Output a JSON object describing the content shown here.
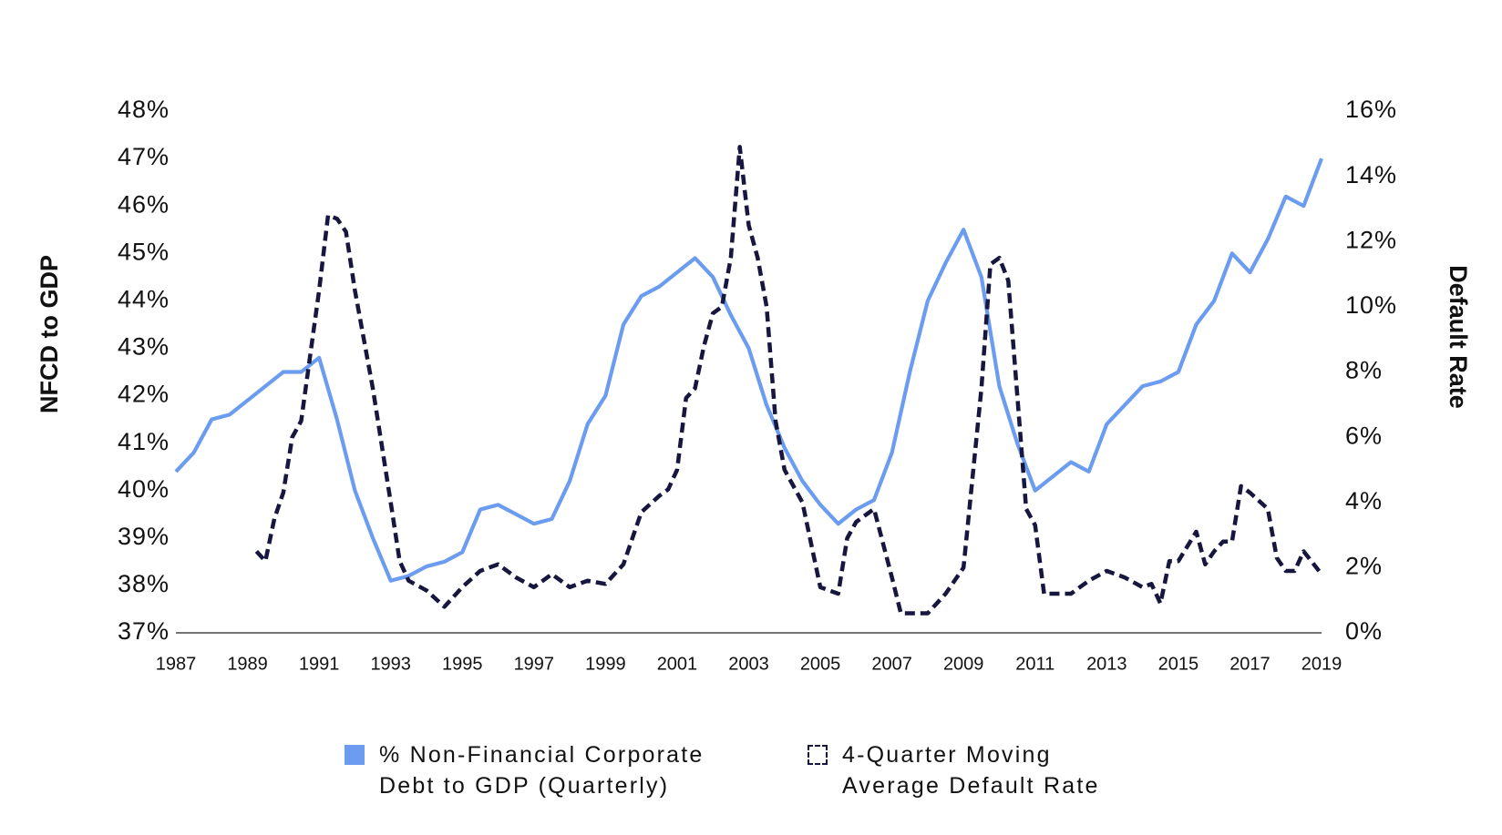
{
  "chart_data": {
    "type": "line",
    "y_label": "NFCD to GDP",
    "y2_label": "Default Rate",
    "xlim": [
      1987,
      2019
    ],
    "xticks": [
      1987,
      1989,
      1991,
      1993,
      1995,
      1997,
      1999,
      2001,
      2003,
      2005,
      2007,
      2009,
      2011,
      2013,
      2015,
      2017,
      2019
    ],
    "ylim": [
      37,
      48
    ],
    "yticks": [
      {
        "value": 37,
        "label": "37%"
      },
      {
        "value": 38,
        "label": "38%"
      },
      {
        "value": 39,
        "label": "39%"
      },
      {
        "value": 40,
        "label": "40%"
      },
      {
        "value": 41,
        "label": "41%"
      },
      {
        "value": 42,
        "label": "42%"
      },
      {
        "value": 43,
        "label": "43%"
      },
      {
        "value": 44,
        "label": "44%"
      },
      {
        "value": 45,
        "label": "45%"
      },
      {
        "value": 46,
        "label": "46%"
      },
      {
        "value": 47,
        "label": "47%"
      },
      {
        "value": 48,
        "label": "48%"
      }
    ],
    "y2lim": [
      0,
      16
    ],
    "y2ticks": [
      {
        "value": 0,
        "label": "0%"
      },
      {
        "value": 2,
        "label": "2%"
      },
      {
        "value": 4,
        "label": "4%"
      },
      {
        "value": 6,
        "label": "6%"
      },
      {
        "value": 8,
        "label": "8%"
      },
      {
        "value": 10,
        "label": "10%"
      },
      {
        "value": 12,
        "label": "12%"
      },
      {
        "value": 14,
        "label": "14%"
      },
      {
        "value": 16,
        "label": "16%"
      }
    ],
    "grid": false,
    "legend": "bottom",
    "series": [
      {
        "name": "% Non-Financial Corporate Debt to GDP (Quarterly)",
        "color": "#6b9cf0",
        "linestyle": "solid",
        "x": [
          1987,
          1987.5,
          1988,
          1988.5,
          1989,
          1989.5,
          1990,
          1990.5,
          1991,
          1991.5,
          1992,
          1992.5,
          1993,
          1993.5,
          1994,
          1994.5,
          1995,
          1995.5,
          1996,
          1996.5,
          1997,
          1997.5,
          1998,
          1998.5,
          1999,
          1999.5,
          2000,
          2000.5,
          2001,
          2001.5,
          2002,
          2002.5,
          2003,
          2003.5,
          2004,
          2004.5,
          2005,
          2005.5,
          2006,
          2006.5,
          2007,
          2007.5,
          2008,
          2008.5,
          2009,
          2009.5,
          2010,
          2010.5,
          2011,
          2011.5,
          2012,
          2012.5,
          2013,
          2013.5,
          2014,
          2014.5,
          2015,
          2015.5,
          2016,
          2016.5,
          2017,
          2017.5,
          2018,
          2018.5,
          2019
        ],
        "values": [
          40.4,
          40.8,
          41.5,
          41.6,
          41.9,
          42.2,
          42.5,
          42.5,
          42.8,
          41.5,
          40.0,
          39.0,
          38.1,
          38.2,
          38.4,
          38.5,
          38.7,
          39.6,
          39.7,
          39.5,
          39.3,
          39.4,
          40.2,
          41.4,
          42.0,
          43.5,
          44.1,
          44.3,
          44.6,
          44.9,
          44.5,
          43.7,
          43.0,
          41.8,
          40.9,
          40.2,
          39.7,
          39.3,
          39.6,
          39.8,
          40.8,
          42.5,
          44.0,
          44.8,
          45.5,
          44.5,
          42.2,
          41.0,
          40.0,
          40.3,
          40.6,
          40.4,
          41.4,
          41.8,
          42.2,
          42.3,
          42.5,
          43.5,
          44.0,
          45.0,
          44.6,
          45.3,
          46.2,
          46.0,
          47.0
        ]
      },
      {
        "name": "4-Quarter Moving Average Default Rate",
        "color": "#16163f",
        "linestyle": "dashed",
        "axis": "y2",
        "x": [
          1989.25,
          1989.5,
          1989.75,
          1990,
          1990.25,
          1990.5,
          1990.75,
          1991,
          1991.25,
          1991.5,
          1991.75,
          1992,
          1992.5,
          1993,
          1993.25,
          1993.5,
          1994,
          1994.5,
          1995,
          1995.5,
          1996,
          1996.5,
          1997,
          1997.5,
          1998,
          1998.5,
          1999,
          1999.5,
          2000,
          2000.5,
          2000.75,
          2001,
          2001.25,
          2001.5,
          2001.75,
          2002,
          2002.25,
          2002.5,
          2002.75,
          2003,
          2003.25,
          2003.5,
          2003.75,
          2004,
          2004.5,
          2005,
          2005.5,
          2005.75,
          2006,
          2006.5,
          2007,
          2007.25,
          2007.5,
          2008,
          2008.5,
          2009,
          2009.5,
          2009.75,
          2010,
          2010.25,
          2010.75,
          2011,
          2011.25,
          2011.5,
          2012,
          2012.5,
          2013,
          2013.5,
          2014,
          2014.25,
          2014.5,
          2014.75,
          2015,
          2015.5,
          2015.75,
          2016,
          2016.25,
          2016.5,
          2016.75,
          2017,
          2017.5,
          2017.75,
          2018,
          2018.25,
          2018.5,
          2019
        ],
        "values": [
          2.5,
          2.2,
          3.5,
          4.3,
          6.0,
          6.5,
          8.5,
          10.5,
          12.8,
          12.7,
          12.3,
          10.5,
          7.5,
          4.0,
          2.2,
          1.6,
          1.3,
          0.8,
          1.4,
          1.9,
          2.1,
          1.7,
          1.4,
          1.8,
          1.4,
          1.6,
          1.5,
          2.1,
          3.7,
          4.2,
          4.4,
          5.0,
          7.2,
          7.5,
          8.8,
          9.8,
          10.0,
          11.5,
          14.9,
          12.5,
          11.5,
          10.0,
          6.5,
          5.0,
          4.0,
          1.4,
          1.2,
          2.9,
          3.4,
          3.8,
          1.7,
          0.6,
          0.6,
          0.6,
          1.2,
          2.0,
          7.5,
          11.3,
          11.5,
          10.8,
          3.8,
          3.3,
          1.2,
          1.2,
          1.2,
          1.6,
          1.9,
          1.7,
          1.4,
          1.5,
          0.9,
          2.2,
          2.2,
          3.1,
          2.1,
          2.5,
          2.8,
          2.8,
          4.5,
          4.3,
          3.8,
          2.3,
          1.9,
          1.9,
          2.5,
          1.8
        ]
      }
    ]
  }
}
